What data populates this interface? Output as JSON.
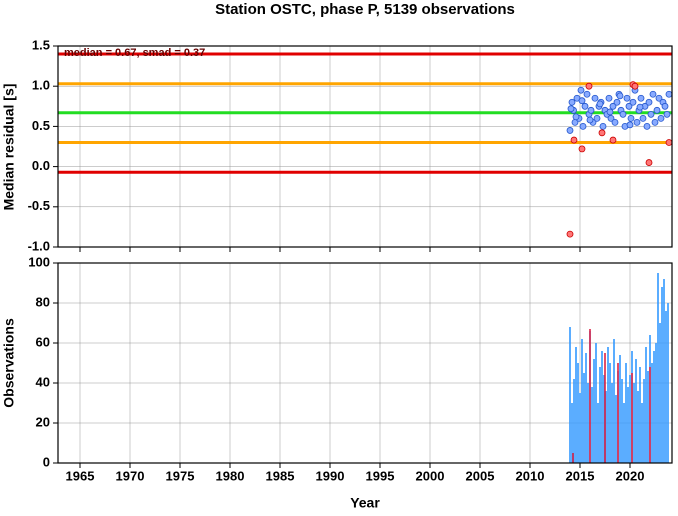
{
  "chart_data": [
    {
      "type": "scatter",
      "title": "Station OSTC, phase P, 5139 observations",
      "ylabel": "Median residual [s]",
      "annotation": "median = 0.67, smad = 0.37",
      "xlim": [
        1962.8,
        2024.2
      ],
      "ylim": [
        -1.0,
        1.5
      ],
      "yticks": [
        {
          "value": -1.0,
          "label": "-1.0"
        },
        {
          "value": -0.5,
          "label": "-0.5"
        },
        {
          "value": 0.0,
          "label": "0.0"
        },
        {
          "value": 0.5,
          "label": "0.5"
        },
        {
          "value": 1.0,
          "label": "1.0"
        },
        {
          "value": 1.5,
          "label": "1.5"
        }
      ],
      "grid": true,
      "hlines": [
        {
          "value": 1.4,
          "color": "#e00000"
        },
        {
          "value": 1.03,
          "color": "#ffa500"
        },
        {
          "value": 0.67,
          "color": "#22dd22"
        },
        {
          "value": 0.3,
          "color": "#ffa500"
        },
        {
          "value": -0.07,
          "color": "#e00000"
        }
      ],
      "series": [
        {
          "color": "#88aaff",
          "x": [
            2014.0,
            2014.2,
            2014.35,
            2014.5,
            2014.7,
            2014.9,
            2015.1,
            2015.3,
            2015.5,
            2015.7,
            2015.9,
            2016.1,
            2016.3,
            2016.5,
            2016.7,
            2016.9,
            2017.1,
            2017.3,
            2017.5,
            2017.7,
            2017.9,
            2018.1,
            2018.3,
            2018.5,
            2018.7,
            2018.9,
            2019.1,
            2019.3,
            2019.5,
            2019.7,
            2019.9,
            2020.1,
            2020.3,
            2020.5,
            2020.7,
            2020.9,
            2021.1,
            2021.3,
            2021.5,
            2021.7,
            2021.9,
            2022.1,
            2022.3,
            2022.5,
            2022.7,
            2022.9,
            2023.1,
            2023.3,
            2023.5,
            2023.7,
            2023.9,
            2014.1,
            2014.6,
            2015.2,
            2016.0,
            2017.0,
            2018.0,
            2019.0,
            2020.0,
            2021.0
          ],
          "values": [
            0.45,
            0.8,
            0.7,
            0.55,
            0.85,
            0.6,
            0.95,
            0.5,
            0.75,
            0.9,
            0.65,
            0.7,
            0.55,
            0.85,
            0.6,
            0.75,
            0.8,
            0.5,
            0.7,
            0.65,
            0.85,
            0.6,
            0.75,
            0.55,
            0.8,
            0.9,
            0.7,
            0.65,
            0.5,
            0.85,
            0.75,
            0.6,
            0.8,
            0.95,
            0.55,
            0.7,
            0.85,
            0.6,
            0.75,
            0.5,
            0.8,
            0.65,
            0.9,
            0.55,
            0.7,
            0.85,
            0.6,
            0.8,
            0.75,
            0.65,
            0.9,
            0.72,
            0.62,
            0.82,
            0.58,
            0.78,
            0.68,
            0.88,
            0.52,
            0.74
          ]
        },
        {
          "color": "#ff7777",
          "x": [
            2014.0,
            2014.4,
            2015.2,
            2015.9,
            2017.2,
            2018.3,
            2020.3,
            2020.5,
            2021.9,
            2023.9
          ],
          "values": [
            -0.84,
            0.33,
            0.22,
            1.0,
            0.42,
            0.33,
            1.02,
            1.0,
            0.05,
            0.3
          ]
        }
      ]
    },
    {
      "type": "bar",
      "ylabel": "Observations",
      "xlabel": "Year",
      "xlim": [
        1962.8,
        2024.2
      ],
      "ylim": [
        0,
        100
      ],
      "xticks": [
        1965,
        1970,
        1975,
        1980,
        1985,
        1990,
        1995,
        2000,
        2005,
        2010,
        2015,
        2020
      ],
      "yticks": [
        0,
        20,
        40,
        60,
        80,
        100
      ],
      "grid": true,
      "series": [
        {
          "color": "#3399ff",
          "x": [
            2014.0,
            2014.2,
            2014.4,
            2014.6,
            2014.8,
            2015.0,
            2015.2,
            2015.4,
            2015.6,
            2015.8,
            2016.0,
            2016.2,
            2016.4,
            2016.6,
            2016.8,
            2017.0,
            2017.2,
            2017.4,
            2017.6,
            2017.8,
            2018.0,
            2018.2,
            2018.4,
            2018.6,
            2018.8,
            2019.0,
            2019.2,
            2019.4,
            2019.6,
            2019.8,
            2020.0,
            2020.2,
            2020.4,
            2020.6,
            2020.8,
            2021.0,
            2021.2,
            2021.4,
            2021.6,
            2021.8,
            2022.0,
            2022.2,
            2022.4,
            2022.6,
            2022.8,
            2023.0,
            2023.2,
            2023.4,
            2023.6,
            2023.8
          ],
          "values": [
            68,
            30,
            42,
            58,
            50,
            35,
            62,
            45,
            55,
            40,
            66,
            38,
            52,
            60,
            30,
            48,
            56,
            44,
            36,
            58,
            50,
            40,
            62,
            34,
            46,
            54,
            42,
            30,
            50,
            38,
            44,
            56,
            40,
            52,
            36,
            48,
            30,
            42,
            58,
            46,
            64,
            50,
            56,
            60,
            95,
            70,
            88,
            92,
            76,
            80
          ]
        },
        {
          "color": "#dd2244",
          "x": [
            2014.3,
            2016.0,
            2017.5,
            2018.8,
            2020.2,
            2022.0
          ],
          "values": [
            5,
            67,
            55,
            50,
            45,
            48
          ]
        }
      ]
    }
  ]
}
